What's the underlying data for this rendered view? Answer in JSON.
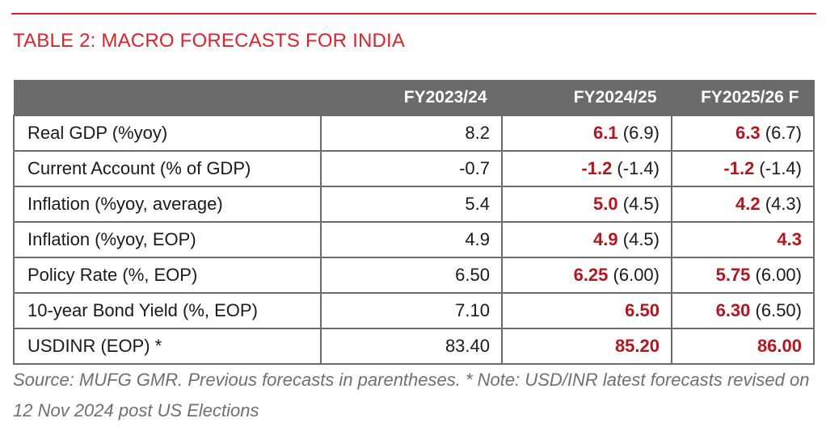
{
  "title": "TABLE 2: MACRO FORECASTS FOR INDIA",
  "columns": [
    "",
    "FY2023/24",
    "FY2024/25",
    "FY2025/26 F"
  ],
  "rows": [
    {
      "label": "Real GDP (%yoy)",
      "fy2324": "8.2",
      "fy2425": {
        "value": "6.1",
        "prev": " (6.9)"
      },
      "fy2526": {
        "value": "6.3",
        "prev": " (6.7)"
      }
    },
    {
      "label": "Current Account (% of GDP)",
      "fy2324": "-0.7",
      "fy2425": {
        "value": "-1.2",
        "prev": " (-1.4)"
      },
      "fy2526": {
        "value": "-1.2",
        "prev": " (-1.4)"
      }
    },
    {
      "label": "Inflation (%yoy, average)",
      "fy2324": "5.4",
      "fy2425": {
        "value": "5.0",
        "prev": " (4.5)"
      },
      "fy2526": {
        "value": "4.2",
        "prev": " (4.3)"
      }
    },
    {
      "label": "Inflation (%yoy, EOP)",
      "fy2324": "4.9",
      "fy2425": {
        "value": "4.9",
        "prev": " (4.5)"
      },
      "fy2526": {
        "value": "4.3",
        "prev": ""
      }
    },
    {
      "label": "Policy Rate (%, EOP)",
      "fy2324": "6.50",
      "fy2425": {
        "value": "6.25",
        "prev": " (6.00)"
      },
      "fy2526": {
        "value": "5.75",
        "prev": " (6.00)"
      }
    },
    {
      "label": "10-year Bond Yield (%, EOP)",
      "fy2324": "7.10",
      "fy2425": {
        "value": "6.50",
        "prev": ""
      },
      "fy2526": {
        "value": "6.30",
        "prev": " (6.50)"
      }
    },
    {
      "label": "USDINR (EOP) *",
      "fy2324": "83.40",
      "fy2425": {
        "value": "85.20",
        "prev": ""
      },
      "fy2526": {
        "value": "86.00",
        "prev": ""
      }
    }
  ],
  "note": "Source: MUFG GMR. Previous forecasts in parentheses. * Note: USD/INR latest forecasts revised on 12 Nov 2024 post US Elections",
  "colors": {
    "accent": "#d9232d",
    "highlight": "#b5161e",
    "header_bg": "#6b6b6b",
    "note_text": "#707070"
  }
}
